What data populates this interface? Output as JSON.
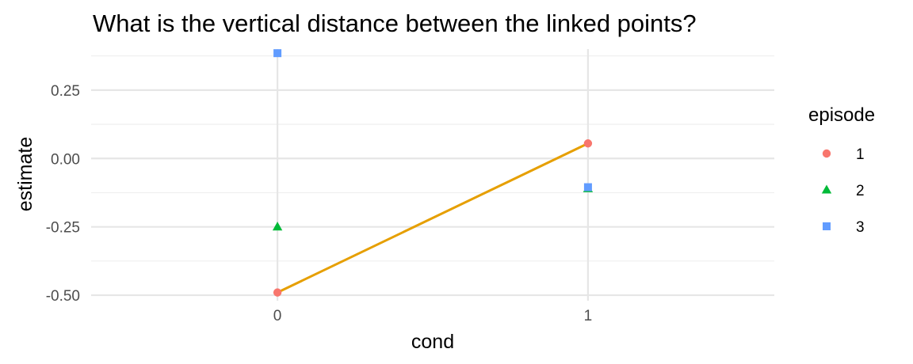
{
  "chart_data": {
    "type": "scatter",
    "title": "What is the vertical distance between the linked points?",
    "xlabel": "cond",
    "ylabel": "estimate",
    "x_categories": [
      "0",
      "1"
    ],
    "xlim": [
      -0.6,
      1.6
    ],
    "ylim": [
      -0.52,
      0.4
    ],
    "y_ticks": [
      0.25,
      0.0,
      -0.25,
      -0.5
    ],
    "y_tick_labels": [
      "0.25",
      "0.00",
      "-0.25",
      "-0.50"
    ],
    "legend_title": "episode",
    "legend_position": "right",
    "grid": true,
    "series": [
      {
        "name": "1",
        "shape": "circle",
        "color": "#F8766D",
        "points": [
          {
            "x": 0,
            "y": -0.49
          },
          {
            "x": 1,
            "y": 0.055
          }
        ]
      },
      {
        "name": "2",
        "shape": "triangle",
        "color": "#00BA38",
        "points": [
          {
            "x": 0,
            "y": -0.25
          },
          {
            "x": 1,
            "y": -0.11
          }
        ]
      },
      {
        "name": "3",
        "shape": "square",
        "color": "#619CFF",
        "points": [
          {
            "x": 0,
            "y": 0.385
          },
          {
            "x": 1,
            "y": -0.105
          }
        ]
      }
    ],
    "highlight_segment": {
      "color": "#E69F00",
      "from": {
        "x": 0,
        "y": -0.49
      },
      "to": {
        "x": 1,
        "y": 0.055
      }
    }
  }
}
